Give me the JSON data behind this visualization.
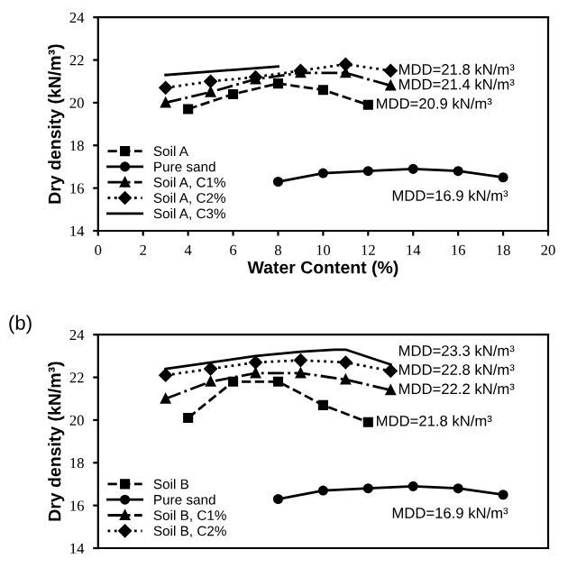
{
  "chart_data": [
    {
      "type": "line",
      "xlabel": "Water Content (%)",
      "ylabel": "Dry density (kN/m³)",
      "xlim": [
        0,
        20
      ],
      "xticks": [
        0,
        2,
        4,
        6,
        8,
        10,
        12,
        14,
        16,
        18,
        20
      ],
      "ylim": [
        14,
        24
      ],
      "yticks": [
        14,
        16,
        18,
        20,
        22,
        24
      ],
      "grid": false,
      "legend": "lower left",
      "series": [
        {
          "name": "Soil A",
          "color": "#000000",
          "marker": "square",
          "line_style": "dashed",
          "x": [
            4,
            6,
            8,
            10,
            12
          ],
          "values": [
            19.7,
            20.4,
            20.9,
            20.6,
            19.9
          ]
        },
        {
          "name": "Pure sand",
          "color": "#000000",
          "marker": "circle",
          "line_style": "solid",
          "x": [
            8,
            10,
            12,
            14,
            16,
            18
          ],
          "values": [
            16.3,
            16.7,
            16.8,
            16.9,
            16.8,
            16.5
          ]
        },
        {
          "name": "Soil A, C1%",
          "color": "#000000",
          "marker": "triangle",
          "line_style": "dashdot",
          "x": [
            3,
            5,
            7,
            9,
            11,
            13
          ],
          "values": [
            20.0,
            20.5,
            21.1,
            21.4,
            21.4,
            20.8
          ]
        },
        {
          "name": "Soil A, C2%",
          "color": "#000000",
          "marker": "diamond",
          "line_style": "dotted",
          "x": [
            3,
            5,
            7,
            9,
            11,
            13
          ],
          "values": [
            20.7,
            21.0,
            21.2,
            21.5,
            21.8,
            21.5
          ]
        },
        {
          "name": "Soil A, C3%",
          "color": "#000000",
          "marker": "none",
          "line_style": "solid",
          "x": [
            3,
            8
          ],
          "values": [
            21.3,
            21.7
          ]
        }
      ],
      "annotations": [
        {
          "text": "MDD=21.8 kN/m³",
          "x": 13,
          "y": 21.5
        },
        {
          "text": "MDD=21.4 kN/m³",
          "x": 13,
          "y": 20.8
        },
        {
          "text": "MDD=20.9 kN/m³",
          "x": 12,
          "y": 19.9
        },
        {
          "text": "MDD=16.9 kN/m³",
          "x": 18,
          "y": 16.5
        }
      ]
    },
    {
      "type": "line",
      "title": "(b)",
      "ylabel": "Dry density (kN/m³)",
      "xlim": [
        0,
        20
      ],
      "ylim": [
        14,
        24
      ],
      "yticks": [
        14,
        16,
        18,
        20,
        22,
        24
      ],
      "tick_labels": "y",
      "grid": false,
      "legend": "lower left",
      "series": [
        {
          "name": "Soil B",
          "color": "#000000",
          "marker": "square",
          "line_style": "dashed",
          "x": [
            4,
            6,
            8,
            10,
            12
          ],
          "values": [
            20.1,
            21.8,
            21.8,
            20.7,
            19.9
          ]
        },
        {
          "name": "Pure sand",
          "color": "#000000",
          "marker": "circle",
          "line_style": "solid",
          "x": [
            8,
            10,
            12,
            14,
            16,
            18
          ],
          "values": [
            16.3,
            16.7,
            16.8,
            16.9,
            16.8,
            16.5
          ]
        },
        {
          "name": "Soil B, C1%",
          "color": "#000000",
          "marker": "triangle",
          "line_style": "dashdot",
          "x": [
            3,
            5,
            7,
            9,
            11,
            13
          ],
          "values": [
            21.0,
            21.8,
            22.2,
            22.2,
            21.9,
            21.4
          ]
        },
        {
          "name": "Soil B, C2%",
          "color": "#000000",
          "marker": "diamond",
          "line_style": "dotted",
          "x": [
            3,
            5,
            7,
            9,
            11,
            13
          ],
          "values": [
            22.1,
            22.4,
            22.7,
            22.8,
            22.7,
            22.3
          ]
        },
        {
          "color": "#000000",
          "marker": "none",
          "line_style": "solid",
          "x": [
            3,
            7,
            9,
            10.5,
            11,
            13
          ],
          "values": [
            22.4,
            23.0,
            23.2,
            23.3,
            23.3,
            22.6
          ]
        }
      ],
      "annotations": [
        {
          "text": "MDD=23.3 kN/m³",
          "x": 13,
          "y": 22.6
        },
        {
          "text": "MDD=22.8 kN/m³",
          "x": 13,
          "y": 22.3
        },
        {
          "text": "MDD=22.2 kN/m³",
          "x": 13,
          "y": 21.4
        },
        {
          "text": "MDD=21.8 kN/m³",
          "x": 12,
          "y": 19.9
        },
        {
          "text": "MDD=16.9 kN/m³",
          "x": 18,
          "y": 16.5
        }
      ]
    }
  ]
}
